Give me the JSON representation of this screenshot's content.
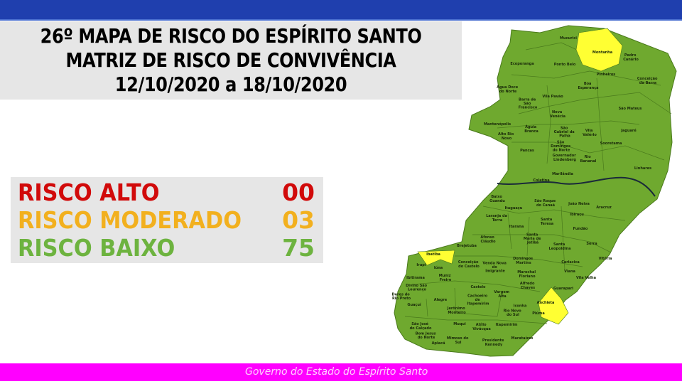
{
  "header": {
    "title_line1": "26º MAPA DE RISCO DO ESPÍRITO SANTO",
    "title_line2": "MATRIZ DE RISCO DE CONVIVÊNCIA",
    "title_line3": "12/10/2020 a 18/10/2020"
  },
  "legend": [
    {
      "label": "RISCO ALTO",
      "count": "00",
      "color": "#d10a0a"
    },
    {
      "label": "RISCO MODERADO",
      "count": "03",
      "color": "#f2b01e"
    },
    {
      "label": "RISCO BAIXO",
      "count": "75",
      "color": "#6db33f"
    }
  ],
  "map": {
    "colors": {
      "baixo": "#6fa92f",
      "moderado": "#ffff33",
      "border": "#4a7a1c",
      "river": "#1a2a3a"
    },
    "municipalities": [
      {
        "name": "Mucurici",
        "risk": "baixo"
      },
      {
        "name": "Montanha",
        "risk": "moderado"
      },
      {
        "name": "Pedro Canário",
        "risk": "baixo"
      },
      {
        "name": "Ecoporanga",
        "risk": "baixo"
      },
      {
        "name": "Ponto Belo",
        "risk": "baixo"
      },
      {
        "name": "Pinheiros",
        "risk": "baixo"
      },
      {
        "name": "Conceição da Barra",
        "risk": "baixo"
      },
      {
        "name": "Boa Esperança",
        "risk": "baixo"
      },
      {
        "name": "Água Doce do Norte",
        "risk": "baixo"
      },
      {
        "name": "Vila Pavão",
        "risk": "baixo"
      },
      {
        "name": "Barra de São Francisco",
        "risk": "baixo"
      },
      {
        "name": "São Mateus",
        "risk": "baixo"
      },
      {
        "name": "Nova Venécia",
        "risk": "baixo"
      },
      {
        "name": "Mantenópolis",
        "risk": "baixo"
      },
      {
        "name": "Águia Branca",
        "risk": "baixo"
      },
      {
        "name": "São Gabriel da Palha",
        "risk": "baixo"
      },
      {
        "name": "Vila Valério",
        "risk": "baixo"
      },
      {
        "name": "Jaguaré",
        "risk": "baixo"
      },
      {
        "name": "Alto Rio Novo",
        "risk": "baixo"
      },
      {
        "name": "Pancas",
        "risk": "baixo"
      },
      {
        "name": "São Domingos do Norte",
        "risk": "baixo"
      },
      {
        "name": "Sooretama",
        "risk": "baixo"
      },
      {
        "name": "Governador Lindenberg",
        "risk": "baixo"
      },
      {
        "name": "Rio Bananal",
        "risk": "baixo"
      },
      {
        "name": "Linhares",
        "risk": "baixo"
      },
      {
        "name": "Marilândia",
        "risk": "baixo"
      },
      {
        "name": "Colatina",
        "risk": "baixo"
      },
      {
        "name": "Baixo Guandu",
        "risk": "baixo"
      },
      {
        "name": "Itaguaçu",
        "risk": "baixo"
      },
      {
        "name": "São Roque do Canaã",
        "risk": "baixo"
      },
      {
        "name": "João Neiva",
        "risk": "baixo"
      },
      {
        "name": "Aracruz",
        "risk": "baixo"
      },
      {
        "name": "Ibiraçu",
        "risk": "baixo"
      },
      {
        "name": "Laranja da Terra",
        "risk": "baixo"
      },
      {
        "name": "Santa Teresa",
        "risk": "baixo"
      },
      {
        "name": "Itarana",
        "risk": "baixo"
      },
      {
        "name": "Fundão",
        "risk": "baixo"
      },
      {
        "name": "Afonso Cláudio",
        "risk": "baixo"
      },
      {
        "name": "Santa Maria de Jetibá",
        "risk": "baixo"
      },
      {
        "name": "Serra",
        "risk": "baixo"
      },
      {
        "name": "Brejetuba",
        "risk": "baixo"
      },
      {
        "name": "Santa Leopoldina",
        "risk": "baixo"
      },
      {
        "name": "Vitória",
        "risk": "baixo"
      },
      {
        "name": "Cariacica",
        "risk": "baixo"
      },
      {
        "name": "Domingos Martins",
        "risk": "baixo"
      },
      {
        "name": "Viana",
        "risk": "baixo"
      },
      {
        "name": "Vila Velha",
        "risk": "baixo"
      },
      {
        "name": "Marechal Floriano",
        "risk": "baixo"
      },
      {
        "name": "Alfredo Chaves",
        "risk": "baixo"
      },
      {
        "name": "Guarapari",
        "risk": "baixo"
      },
      {
        "name": "Ibatiba",
        "risk": "moderado"
      },
      {
        "name": "Iúna",
        "risk": "baixo"
      },
      {
        "name": "Irupi",
        "risk": "baixo"
      },
      {
        "name": "Conceição do Castelo",
        "risk": "baixo"
      },
      {
        "name": "Venda Nova do Imigrante",
        "risk": "baixo"
      },
      {
        "name": "Ibitirama",
        "risk": "baixo"
      },
      {
        "name": "Muniz Freire",
        "risk": "baixo"
      },
      {
        "name": "Castelo",
        "risk": "baixo"
      },
      {
        "name": "Divino São Lourenço",
        "risk": "baixo"
      },
      {
        "name": "Dores do Rio Preto",
        "risk": "baixo"
      },
      {
        "name": "Vargem Alta",
        "risk": "baixo"
      },
      {
        "name": "Alegre",
        "risk": "baixo"
      },
      {
        "name": "Cachoeiro de Itapemirim",
        "risk": "baixo"
      },
      {
        "name": "Anchieta",
        "risk": "moderado"
      },
      {
        "name": "Guaçuí",
        "risk": "baixo"
      },
      {
        "name": "Iconha",
        "risk": "baixo"
      },
      {
        "name": "Jerônimo Monteiro",
        "risk": "baixo"
      },
      {
        "name": "Rio Novo do Sul",
        "risk": "baixo"
      },
      {
        "name": "Piúma",
        "risk": "baixo"
      },
      {
        "name": "Muqui",
        "risk": "baixo"
      },
      {
        "name": "Atílio Vivácqua",
        "risk": "baixo"
      },
      {
        "name": "Itapemirim",
        "risk": "baixo"
      },
      {
        "name": "São José do Calçado",
        "risk": "baixo"
      },
      {
        "name": "Apiacá",
        "risk": "baixo"
      },
      {
        "name": "Bom Jesus do Norte",
        "risk": "baixo"
      },
      {
        "name": "Mimoso do Sul",
        "risk": "baixo"
      },
      {
        "name": "Presidente Kennedy",
        "risk": "baixo"
      },
      {
        "name": "Marataízes",
        "risk": "baixo"
      }
    ]
  },
  "footer": {
    "text": "Governo do Estado do Espírito Santo",
    "color": "#ff00ff"
  }
}
